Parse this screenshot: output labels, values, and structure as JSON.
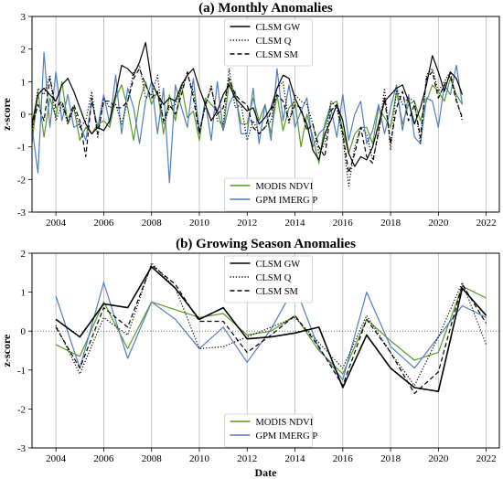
{
  "chart_data": [
    {
      "type": "line",
      "title": "(a) Monthly Anomalies",
      "ylabel": "z-score",
      "xlabel": "",
      "xlim": [
        2003.0,
        2022.55
      ],
      "ylim": [
        -3,
        3
      ],
      "xticks": [
        2004,
        2006,
        2008,
        2010,
        2012,
        2014,
        2016,
        2018,
        2020,
        2022
      ],
      "yticks": [
        -3,
        -2,
        -1,
        0,
        1,
        2,
        3
      ],
      "grid": "vertical",
      "legend_top": "top-center",
      "legend_bottom": "bottom-center",
      "step": 0.25,
      "series": [
        {
          "name": "CLSM GW",
          "color": "#000000",
          "dash": "solid",
          "values": [
            -0.3,
            0.6,
            0.8,
            0.6,
            0.4,
            0.9,
            1.1,
            0.7,
            0.2,
            -0.3,
            -0.6,
            -0.4,
            -0.5,
            -0.2,
            0.6,
            1.5,
            1.4,
            1.2,
            1.6,
            2.2,
            1.0,
            0.6,
            0.3,
            0.5,
            0.4,
            0.9,
            1.2,
            1.4,
            0.8,
            0.3,
            -0.2,
            0.1,
            0.6,
            0.9,
            0.5,
            0.3,
            0.1,
            0.2,
            -0.3,
            -0.1,
            0.2,
            0.8,
            1.2,
            1.1,
            0.5,
            0.1,
            -0.3,
            -1.1,
            -1.4,
            -0.6,
            -0.2,
            0.3,
            -0.2,
            -1.2,
            -1.6,
            -1.3,
            -1.4,
            -1.0,
            -0.3,
            0.4,
            0.6,
            0.8,
            0.9,
            0.4,
            -0.3,
            0.2,
            0.9,
            1.8,
            1.3,
            0.7,
            1.3,
            1.1,
            0.6
          ]
        },
        {
          "name": "CLSM Q",
          "color": "#000000",
          "dash": "dotted",
          "values": [
            -0.6,
            0.8,
            0.6,
            1.2,
            -0.2,
            0.3,
            -0.3,
            0.2,
            -0.4,
            -0.2,
            0.7,
            -0.7,
            0.5,
            0.2,
            0.3,
            -0.3,
            0.4,
            1.3,
            1.5,
            0.5,
            0.6,
            1.2,
            -0.3,
            0.2,
            0.3,
            0.8,
            1.2,
            0.7,
            -0.5,
            0.2,
            0.9,
            -0.2,
            -0.3,
            1.4,
            0.2,
            0.3,
            -0.8,
            -0.2,
            -0.6,
            -0.4,
            -0.2,
            0.8,
            1.0,
            -0.3,
            0.6,
            0.4,
            0.3,
            -0.3,
            -1.2,
            -0.9,
            0.4,
            0.2,
            -0.7,
            -2.2,
            -1.0,
            -0.4,
            -0.6,
            -1.4,
            -0.6,
            0.8,
            -1.1,
            0.8,
            0.3,
            0.5,
            0.4,
            -0.9,
            1.2,
            1.4,
            0.7,
            1.0,
            1.3,
            0.5,
            -0.2
          ]
        },
        {
          "name": "CLSM SM",
          "color": "#000000",
          "dash": "dashed",
          "values": [
            -0.4,
            0.3,
            -0.2,
            1.1,
            0.2,
            0.4,
            -0.2,
            0.3,
            -0.2,
            -1.3,
            0.5,
            -0.6,
            0.4,
            0.4,
            0.2,
            0.2,
            0.4,
            1.1,
            1.4,
            0.9,
            0.5,
            0.7,
            -0.2,
            0.3,
            0.0,
            0.6,
            1.3,
            0.5,
            -0.6,
            0.3,
            0.8,
            0.0,
            0.2,
            1.1,
            0.6,
            0.4,
            0.3,
            -0.4,
            -0.6,
            -0.4,
            0.1,
            0.6,
            0.4,
            -0.2,
            0.3,
            0.2,
            -0.5,
            -0.3,
            -1.0,
            -1.3,
            0.1,
            0.3,
            -0.6,
            -1.8,
            -1.2,
            -0.4,
            -1.3,
            -1.5,
            -0.5,
            0.5,
            -0.9,
            0.2,
            0.7,
            -0.2,
            0.3,
            -0.7,
            1.1,
            1.3,
            0.5,
            0.9,
            1.2,
            0.4,
            -0.1
          ]
        },
        {
          "name": "MODIS NDVI",
          "color": "#5a9a28",
          "dash": "solid",
          "values": [
            -0.9,
            0.7,
            -0.7,
            0.5,
            -0.1,
            1.0,
            -0.3,
            0.2,
            -0.8,
            -0.4,
            -0.6,
            -0.3,
            -0.2,
            -0.4,
            0.5,
            0.9,
            0.2,
            -0.8,
            0.4,
            1.0,
            0.3,
            0.7,
            -0.6,
            0.6,
            -0.2,
            0.9,
            -0.1,
            0.1,
            -0.8,
            0.5,
            0.3,
            0.1,
            -0.5,
            1.0,
            0.6,
            -0.3,
            -0.3,
            0.5,
            -0.2,
            0.3,
            -0.6,
            0.6,
            -0.5,
            0.2,
            0.4,
            -1.0,
            0.0,
            -0.7,
            -1.5,
            -0.3,
            0.3,
            0.4,
            -0.5,
            -1.2,
            -0.6,
            -0.4,
            -0.4,
            -0.9,
            0.2,
            -0.1,
            -0.4,
            0.7,
            -0.3,
            0.3,
            0.4,
            -0.2,
            0.4,
            0.9,
            0.7,
            0.4,
            1.1,
            0.6,
            0.3
          ]
        },
        {
          "name": "GPM IMERG P",
          "color": "#4f7fc0",
          "dash": "solid",
          "values": [
            -0.4,
            -1.8,
            1.9,
            -0.4,
            1.3,
            -0.2,
            0.6,
            -0.4,
            -0.3,
            -0.8,
            0.4,
            -0.4,
            0.6,
            -0.3,
            1.2,
            -0.6,
            0.8,
            0.2,
            -0.9,
            0.4,
            1.0,
            -0.6,
            0.8,
            -2.1,
            0.9,
            0.2,
            -0.4,
            1.1,
            -0.6,
            0.4,
            -0.8,
            1.0,
            -0.5,
            0.3,
            0.7,
            -0.6,
            -0.6,
            0.8,
            -0.9,
            0.3,
            -0.8,
            1.4,
            -0.2,
            0.9,
            -0.4,
            0.1,
            0.5,
            -1.0,
            -0.6,
            -0.4,
            0.2,
            -0.7,
            0.6,
            -0.8,
            0.0,
            0.4,
            -0.9,
            -0.5,
            0.3,
            -0.6,
            0.2,
            0.9,
            -0.5,
            0.6,
            -0.7,
            -0.9,
            0.5,
            0.4,
            -0.4,
            0.9,
            0.6,
            1.5,
            0.3
          ]
        }
      ]
    },
    {
      "type": "line",
      "title": "(b) Growing Season Anomalies",
      "ylabel": "z-score",
      "xlabel": "Date",
      "xlim": [
        2003.0,
        2022.55
      ],
      "ylim": [
        -3,
        2
      ],
      "xticks": [
        2004,
        2006,
        2008,
        2010,
        2012,
        2014,
        2016,
        2018,
        2020,
        2022
      ],
      "yticks": [
        -3,
        -2,
        -1,
        0,
        1,
        2
      ],
      "grid": "vertical",
      "zero_line": true,
      "legend_top": "top-center",
      "legend_bottom": "bottom-center",
      "x": [
        2004,
        2005,
        2006,
        2007,
        2008,
        2009,
        2010,
        2011,
        2012,
        2013,
        2014,
        2015,
        2016,
        2017,
        2018,
        2019,
        2020,
        2021,
        2022
      ],
      "series": [
        {
          "name": "CLSM GW",
          "color": "#000000",
          "dash": "solid",
          "values": [
            0.3,
            -0.15,
            0.7,
            0.6,
            1.65,
            1.1,
            0.3,
            0.6,
            -0.2,
            -0.15,
            -0.05,
            0.1,
            -1.45,
            -0.1,
            -0.95,
            -1.45,
            -1.55,
            1.1,
            0.4
          ]
        },
        {
          "name": "CLSM Q",
          "color": "#000000",
          "dash": "dotted",
          "values": [
            0.15,
            -1.1,
            0.35,
            -0.1,
            1.75,
            1.1,
            -0.45,
            -0.4,
            -0.15,
            0.1,
            0.35,
            -0.3,
            -0.95,
            0.4,
            -0.55,
            -1.4,
            -0.15,
            1.25,
            -0.35
          ]
        },
        {
          "name": "CLSM SM",
          "color": "#000000",
          "dash": "dashed",
          "values": [
            0.1,
            -0.95,
            0.6,
            0.1,
            1.7,
            1.2,
            0.25,
            0.25,
            -0.55,
            -0.1,
            0.4,
            -0.4,
            -1.4,
            0.3,
            -0.55,
            -1.6,
            -1.05,
            1.2,
            0.2
          ]
        },
        {
          "name": "MODIS NDVI",
          "color": "#5a9a28",
          "dash": "solid",
          "values": [
            -0.35,
            -0.65,
            0.75,
            -0.45,
            0.75,
            0.55,
            0.35,
            0.45,
            -0.1,
            0.0,
            0.4,
            -0.5,
            -1.1,
            0.3,
            -0.25,
            -0.75,
            -0.55,
            1.15,
            0.85
          ]
        },
        {
          "name": "GPM IMERG P",
          "color": "#4f7fc0",
          "dash": "solid",
          "values": [
            0.9,
            -0.95,
            1.25,
            -0.7,
            0.75,
            0.3,
            -0.45,
            0.1,
            -0.8,
            0.05,
            1.15,
            -0.45,
            -1.25,
            1.0,
            -0.4,
            -0.95,
            -0.15,
            0.65,
            0.35
          ]
        }
      ]
    }
  ]
}
